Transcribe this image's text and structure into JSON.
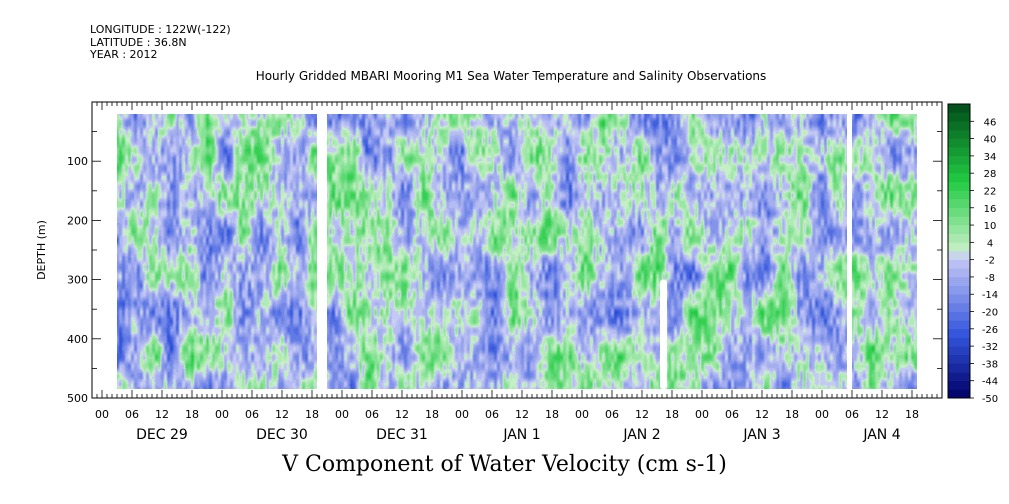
{
  "header": {
    "longitude": "LONGITUDE : 122W(-122)",
    "latitude": "LATITUDE : 36.8N",
    "year": "YEAR : 2012"
  },
  "chart_data": {
    "type": "heatmap",
    "title": "Hourly Gridded MBARI Mooring M1 Sea Water Temperature and Salinity Observations",
    "caption": "V Component of Water Velocity (cm s-1)",
    "ylabel": "DEPTH (m)",
    "y_axis": {
      "range": [
        0,
        500
      ],
      "inverted": true,
      "major_ticks": [
        100,
        200,
        300,
        400,
        500
      ],
      "minor_step": 50
    },
    "x_axis": {
      "hour_ticks": [
        "00",
        "06",
        "12",
        "18",
        "00",
        "06",
        "12",
        "18",
        "00",
        "06",
        "12",
        "18",
        "00",
        "06",
        "12",
        "18",
        "00",
        "06",
        "12",
        "18",
        "00",
        "06",
        "12",
        "18",
        "00",
        "06",
        "12",
        "18"
      ],
      "day_labels": [
        "DEC 29",
        "DEC 30",
        "DEC 31",
        "JAN  1",
        "JAN  2",
        "JAN  3",
        "JAN  4"
      ],
      "data_start_hour": 3,
      "data_end_hour": 163
    },
    "data_depth_range": [
      20,
      485
    ],
    "data_gaps_hours": [
      [
        43,
        45
      ],
      [
        149,
        150
      ]
    ],
    "colorbar": {
      "labels": [
        "46",
        "40",
        "34",
        "28",
        "22",
        "16",
        "10",
        "4",
        "-2",
        "-8",
        "-14",
        "-20",
        "-26",
        "-32",
        "-38",
        "-44",
        "-50"
      ],
      "range": [
        -50,
        52
      ],
      "interval": 3,
      "colors": {
        "deep_negative": "#000066",
        "negative": "#3355dd",
        "near_zero_negative": "#c8cbf5",
        "near_zero_positive": "#c8f0c8",
        "positive": "#22cc44",
        "deep_positive": "#004d1a"
      }
    },
    "dominant_value_range": [
      -20,
      20
    ]
  }
}
